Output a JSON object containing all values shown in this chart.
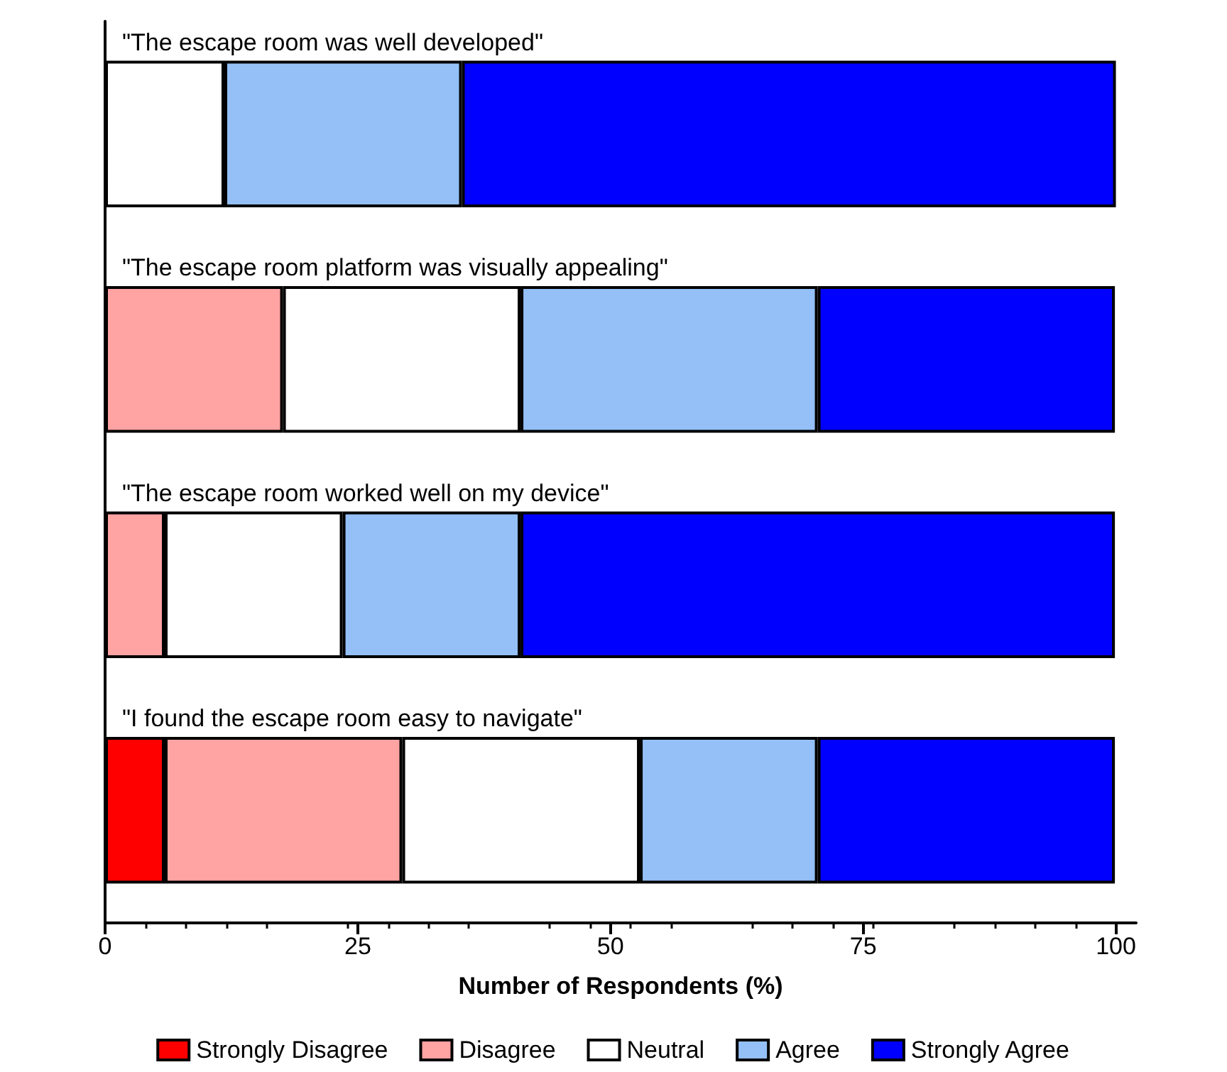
{
  "chart_data": {
    "type": "bar",
    "orientation": "horizontal",
    "stacked": true,
    "categories": [
      "\"The escape room was well developed\"",
      "\"The escape room platform was visually appealing\"",
      "\"The escape room worked well on my device\"",
      "\"I found the escape room easy to navigate\""
    ],
    "series": [
      {
        "name": "Strongly Disagree",
        "color": "#ff0000",
        "values": [
          null,
          null,
          null,
          5.9
        ]
      },
      {
        "name": "Disagree",
        "color": "#ffa3a3",
        "values": [
          null,
          17.6,
          5.9,
          23.5
        ]
      },
      {
        "name": "Neutral",
        "color": "#ffffff",
        "values": [
          11.8,
          23.5,
          17.6,
          23.5
        ]
      },
      {
        "name": "Agree",
        "color": "#94c0f7",
        "values": [
          23.5,
          29.4,
          17.6,
          17.6
        ]
      },
      {
        "name": "Strongly Agree",
        "color": "#0000ff",
        "values": [
          64.7,
          29.4,
          58.8,
          29.4
        ]
      }
    ],
    "xlabel": "Number of Respondents (%)",
    "xlim": [
      0,
      102
    ],
    "xticks": [
      0,
      25,
      50,
      75,
      100
    ],
    "grid": false,
    "legend": "bottom"
  }
}
